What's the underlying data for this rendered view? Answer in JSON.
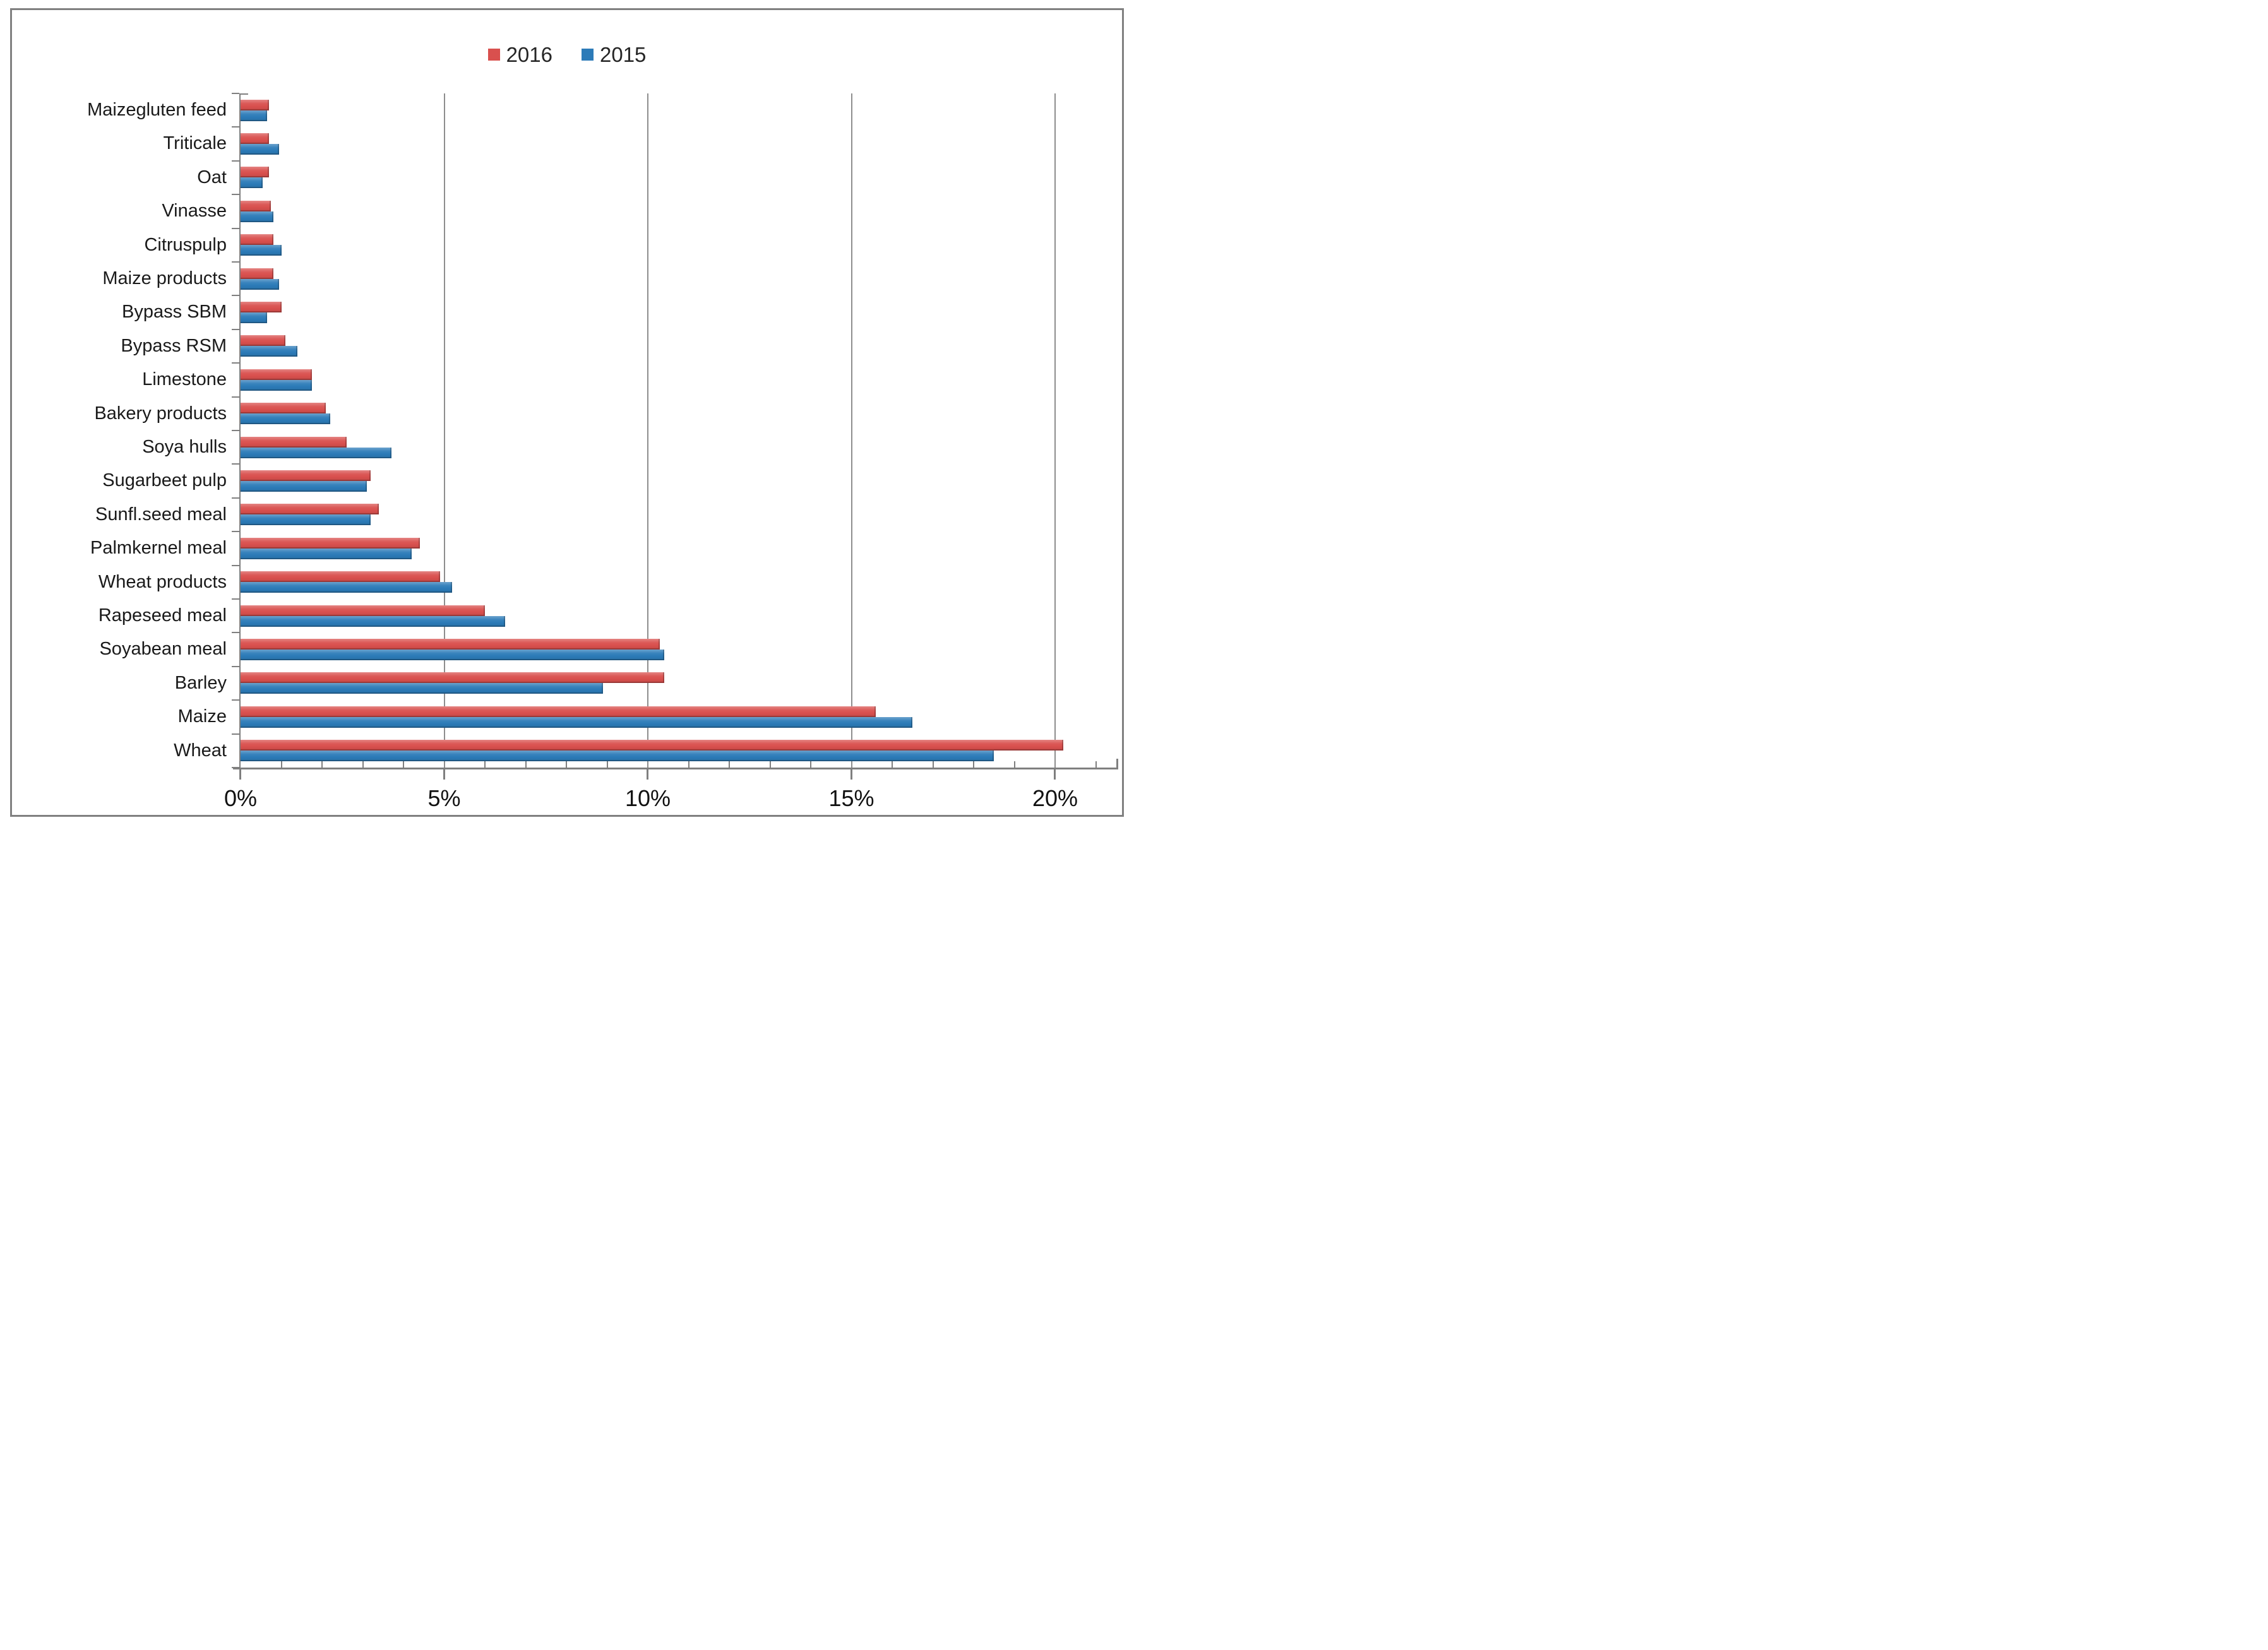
{
  "chart_data": {
    "type": "bar",
    "orientation": "horizontal",
    "title": "",
    "xlabel": "",
    "ylabel": "",
    "legend_position": "top-center",
    "grid": "vertical-only",
    "categories": [
      "Maizegluten feed",
      "Triticale",
      "Oat",
      "Vinasse",
      "Citruspulp",
      "Maize products",
      "Bypass SBM",
      "Bypass RSM",
      "Limestone",
      "Bakery products",
      "Soya hulls",
      "Sugarbeet pulp",
      "Sunfl.seed meal",
      "Palmkernel meal",
      "Wheat products",
      "Rapeseed meal",
      "Soyabean meal",
      "Barley",
      "Maize",
      "Wheat"
    ],
    "series": [
      {
        "name": "2016",
        "color": "#d9504e",
        "values": [
          0.7,
          0.7,
          0.7,
          0.75,
          0.8,
          0.8,
          1.0,
          1.1,
          1.75,
          2.1,
          2.6,
          3.2,
          3.4,
          4.4,
          4.9,
          6.0,
          10.3,
          10.4,
          15.6,
          20.2
        ]
      },
      {
        "name": "2015",
        "color": "#2c7bb8",
        "values": [
          0.65,
          0.95,
          0.55,
          0.8,
          1.0,
          0.95,
          0.65,
          1.4,
          1.75,
          2.2,
          3.7,
          3.1,
          3.2,
          4.2,
          5.2,
          6.5,
          10.4,
          8.9,
          16.5,
          18.5
        ]
      }
    ],
    "x_axis": {
      "tick_labels": [
        "0%",
        "5%",
        "10%",
        "15%",
        "20%"
      ],
      "tick_values": [
        0,
        5,
        10,
        15,
        20
      ],
      "minor_tick_step": 1,
      "axis_max": 21.55,
      "unit": "%"
    },
    "colors": {
      "axis": "#7f7f7f",
      "gridline": "#8e8e8e",
      "frame": "#808080",
      "text": "#1a1a1a",
      "background": "#ffffff"
    }
  }
}
